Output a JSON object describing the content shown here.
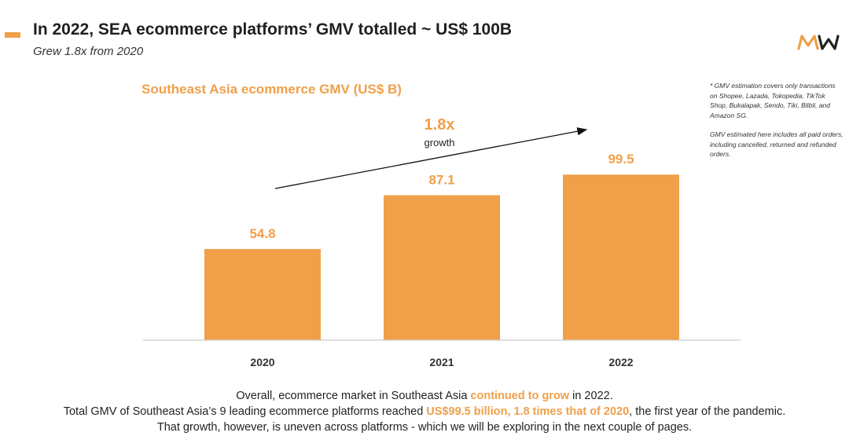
{
  "header": {
    "title": "In 2022, SEA ecommerce platforms’ GMV totalled ~ US$ 100B",
    "subtitle": "Grew 1.8x from 2020",
    "logo_text": "MW"
  },
  "notes": [
    "* GMV estimation covers only transactions on Shopee, Lazada, Tokopedia, TikTok Shop, Bukalapak, Sendo, Tiki, Blibli, and Amazon SG.",
    "GMV estimated here includes all paid orders, including cancelled, returned and refunded orders."
  ],
  "chart_data": {
    "type": "bar",
    "title": "Southeast Asia ecommerce GMV (US$ B)",
    "categories": [
      "2020",
      "2021",
      "2022"
    ],
    "values": [
      54.8,
      87.1,
      99.5
    ],
    "value_labels": [
      "54.8",
      "87.1",
      "99.5"
    ],
    "ylim": [
      0,
      110
    ],
    "grid": false,
    "annotation": {
      "value": "1.8x",
      "label": "growth"
    },
    "colors": {
      "bar": "#f0a049",
      "value_label": "#f0a049",
      "axis": "#cccccc"
    }
  },
  "footer": {
    "line1": {
      "pre": "Overall, ecommerce market in Southeast Asia ",
      "highlight": "continued to grow",
      "post": " in 2022."
    },
    "line2": {
      "pre": "Total GMV of Southeast Asia’s 9 leading ecommerce platforms reached ",
      "highlight": "US$99.5 billion, 1.8 times that of 2020",
      "post": ", the first year of the pandemic."
    },
    "line3": "That growth, however, is uneven across platforms - which we will be exploring in the next couple of pages."
  }
}
